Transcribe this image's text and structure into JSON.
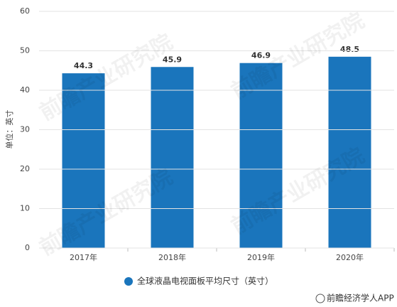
{
  "chart_data": {
    "type": "bar",
    "categories": [
      "2017年",
      "2018年",
      "2019年",
      "2020年"
    ],
    "values": [
      44.3,
      45.9,
      46.9,
      48.5
    ],
    "color": "#1a75bc",
    "series_name": "全球液晶电视面板平均尺寸（英寸）",
    "y_label": "单位：英寸",
    "ylim": [
      0,
      60
    ],
    "yticks": [
      0,
      10,
      20,
      30,
      40,
      50,
      60
    ],
    "grid": true,
    "watermark": "前瞻产业研究院",
    "source": "前瞻经济学人APP"
  }
}
